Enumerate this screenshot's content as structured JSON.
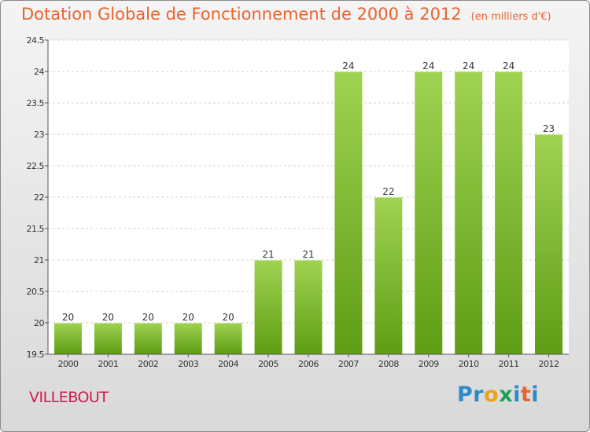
{
  "title": "Dotation Globale de Fonctionnement de 2000 à 2012",
  "unit": "(en milliers d'€)",
  "commune": "VILLEBOUT",
  "brand": {
    "letters": [
      "P",
      "r",
      "o",
      "x",
      "i",
      "t",
      "i"
    ],
    "colors": [
      "#2e8bc9",
      "#2e8bc9",
      "#e8a21c",
      "#1aa05a",
      "#2e8bc9",
      "#e8642e",
      "#2e8bc9"
    ]
  },
  "colors": {
    "title": "#e8642e",
    "commune": "#d11a4e",
    "bar_light": "#9fd351",
    "bar_dark": "#5f9d16"
  },
  "chart_data": {
    "type": "bar",
    "categories": [
      "2000",
      "2001",
      "2002",
      "2003",
      "2004",
      "2005",
      "2006",
      "2007",
      "2008",
      "2009",
      "2010",
      "2011",
      "2012"
    ],
    "values": [
      20,
      20,
      20,
      20,
      20,
      21,
      21,
      24,
      22,
      24,
      24,
      24,
      23
    ],
    "ylim": [
      19.5,
      24.5
    ],
    "yticks": [
      "19.5",
      "20",
      "20.5",
      "21",
      "21.5",
      "22",
      "22.5",
      "23",
      "23.5",
      "24",
      "24.5"
    ],
    "grid": true
  }
}
